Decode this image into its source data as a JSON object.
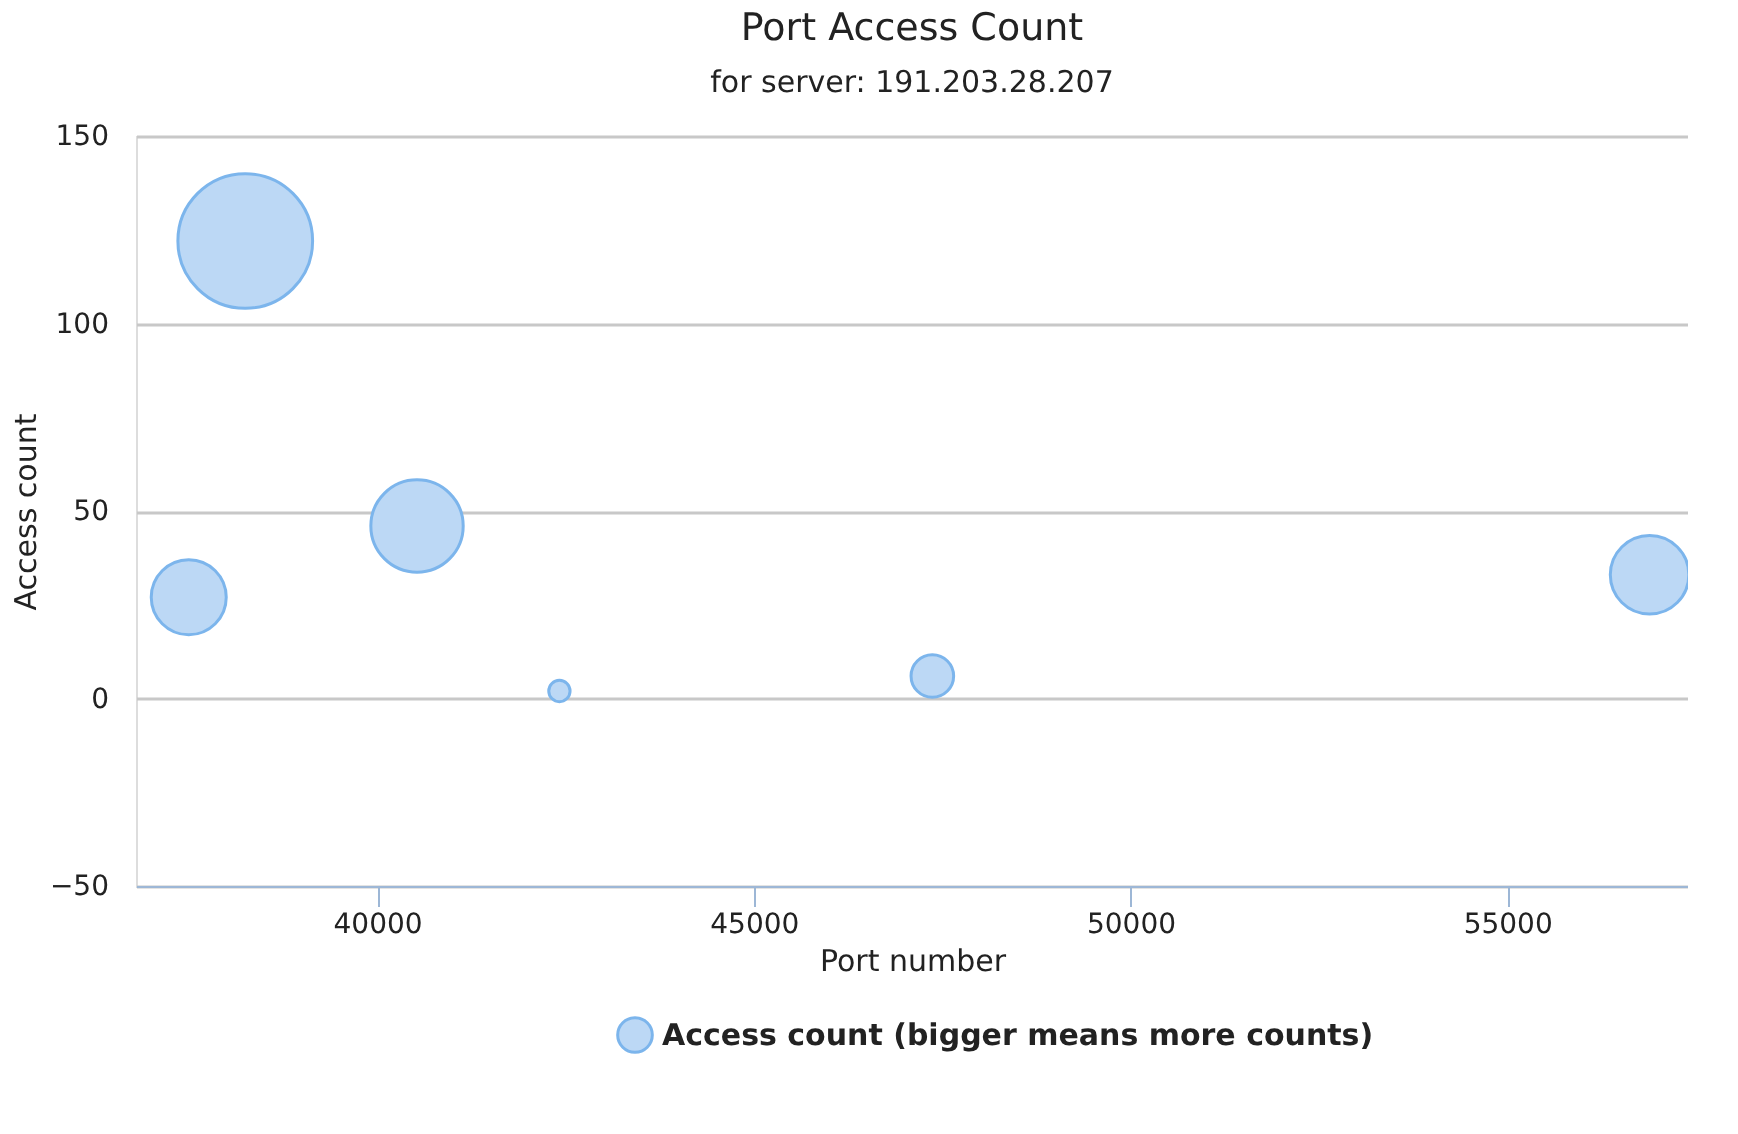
{
  "chart_data": {
    "type": "bubble",
    "title": "Port Access Count",
    "subtitle": "for server: 191.203.28.207",
    "xlabel": "Port number",
    "ylabel": "Access count",
    "x": [
      37500,
      38250,
      40530,
      42420,
      47370,
      56890
    ],
    "series": [
      {
        "name": "Access count (bigger means more counts)",
        "color": "#bcd8f5",
        "values": [
          27,
          122,
          46,
          2,
          6,
          33
        ],
        "sizes": [
          0.31,
          1,
          0.47,
          0.025,
          0.1,
          0.34
        ]
      }
    ],
    "xlim": [
      36800,
      57400
    ],
    "xticks": [
      40000,
      45000,
      50000,
      55000
    ],
    "ylim": [
      -50,
      150
    ],
    "yticks": [
      -50,
      0,
      50,
      100,
      150
    ],
    "grid": "y",
    "legend": "bottom"
  }
}
